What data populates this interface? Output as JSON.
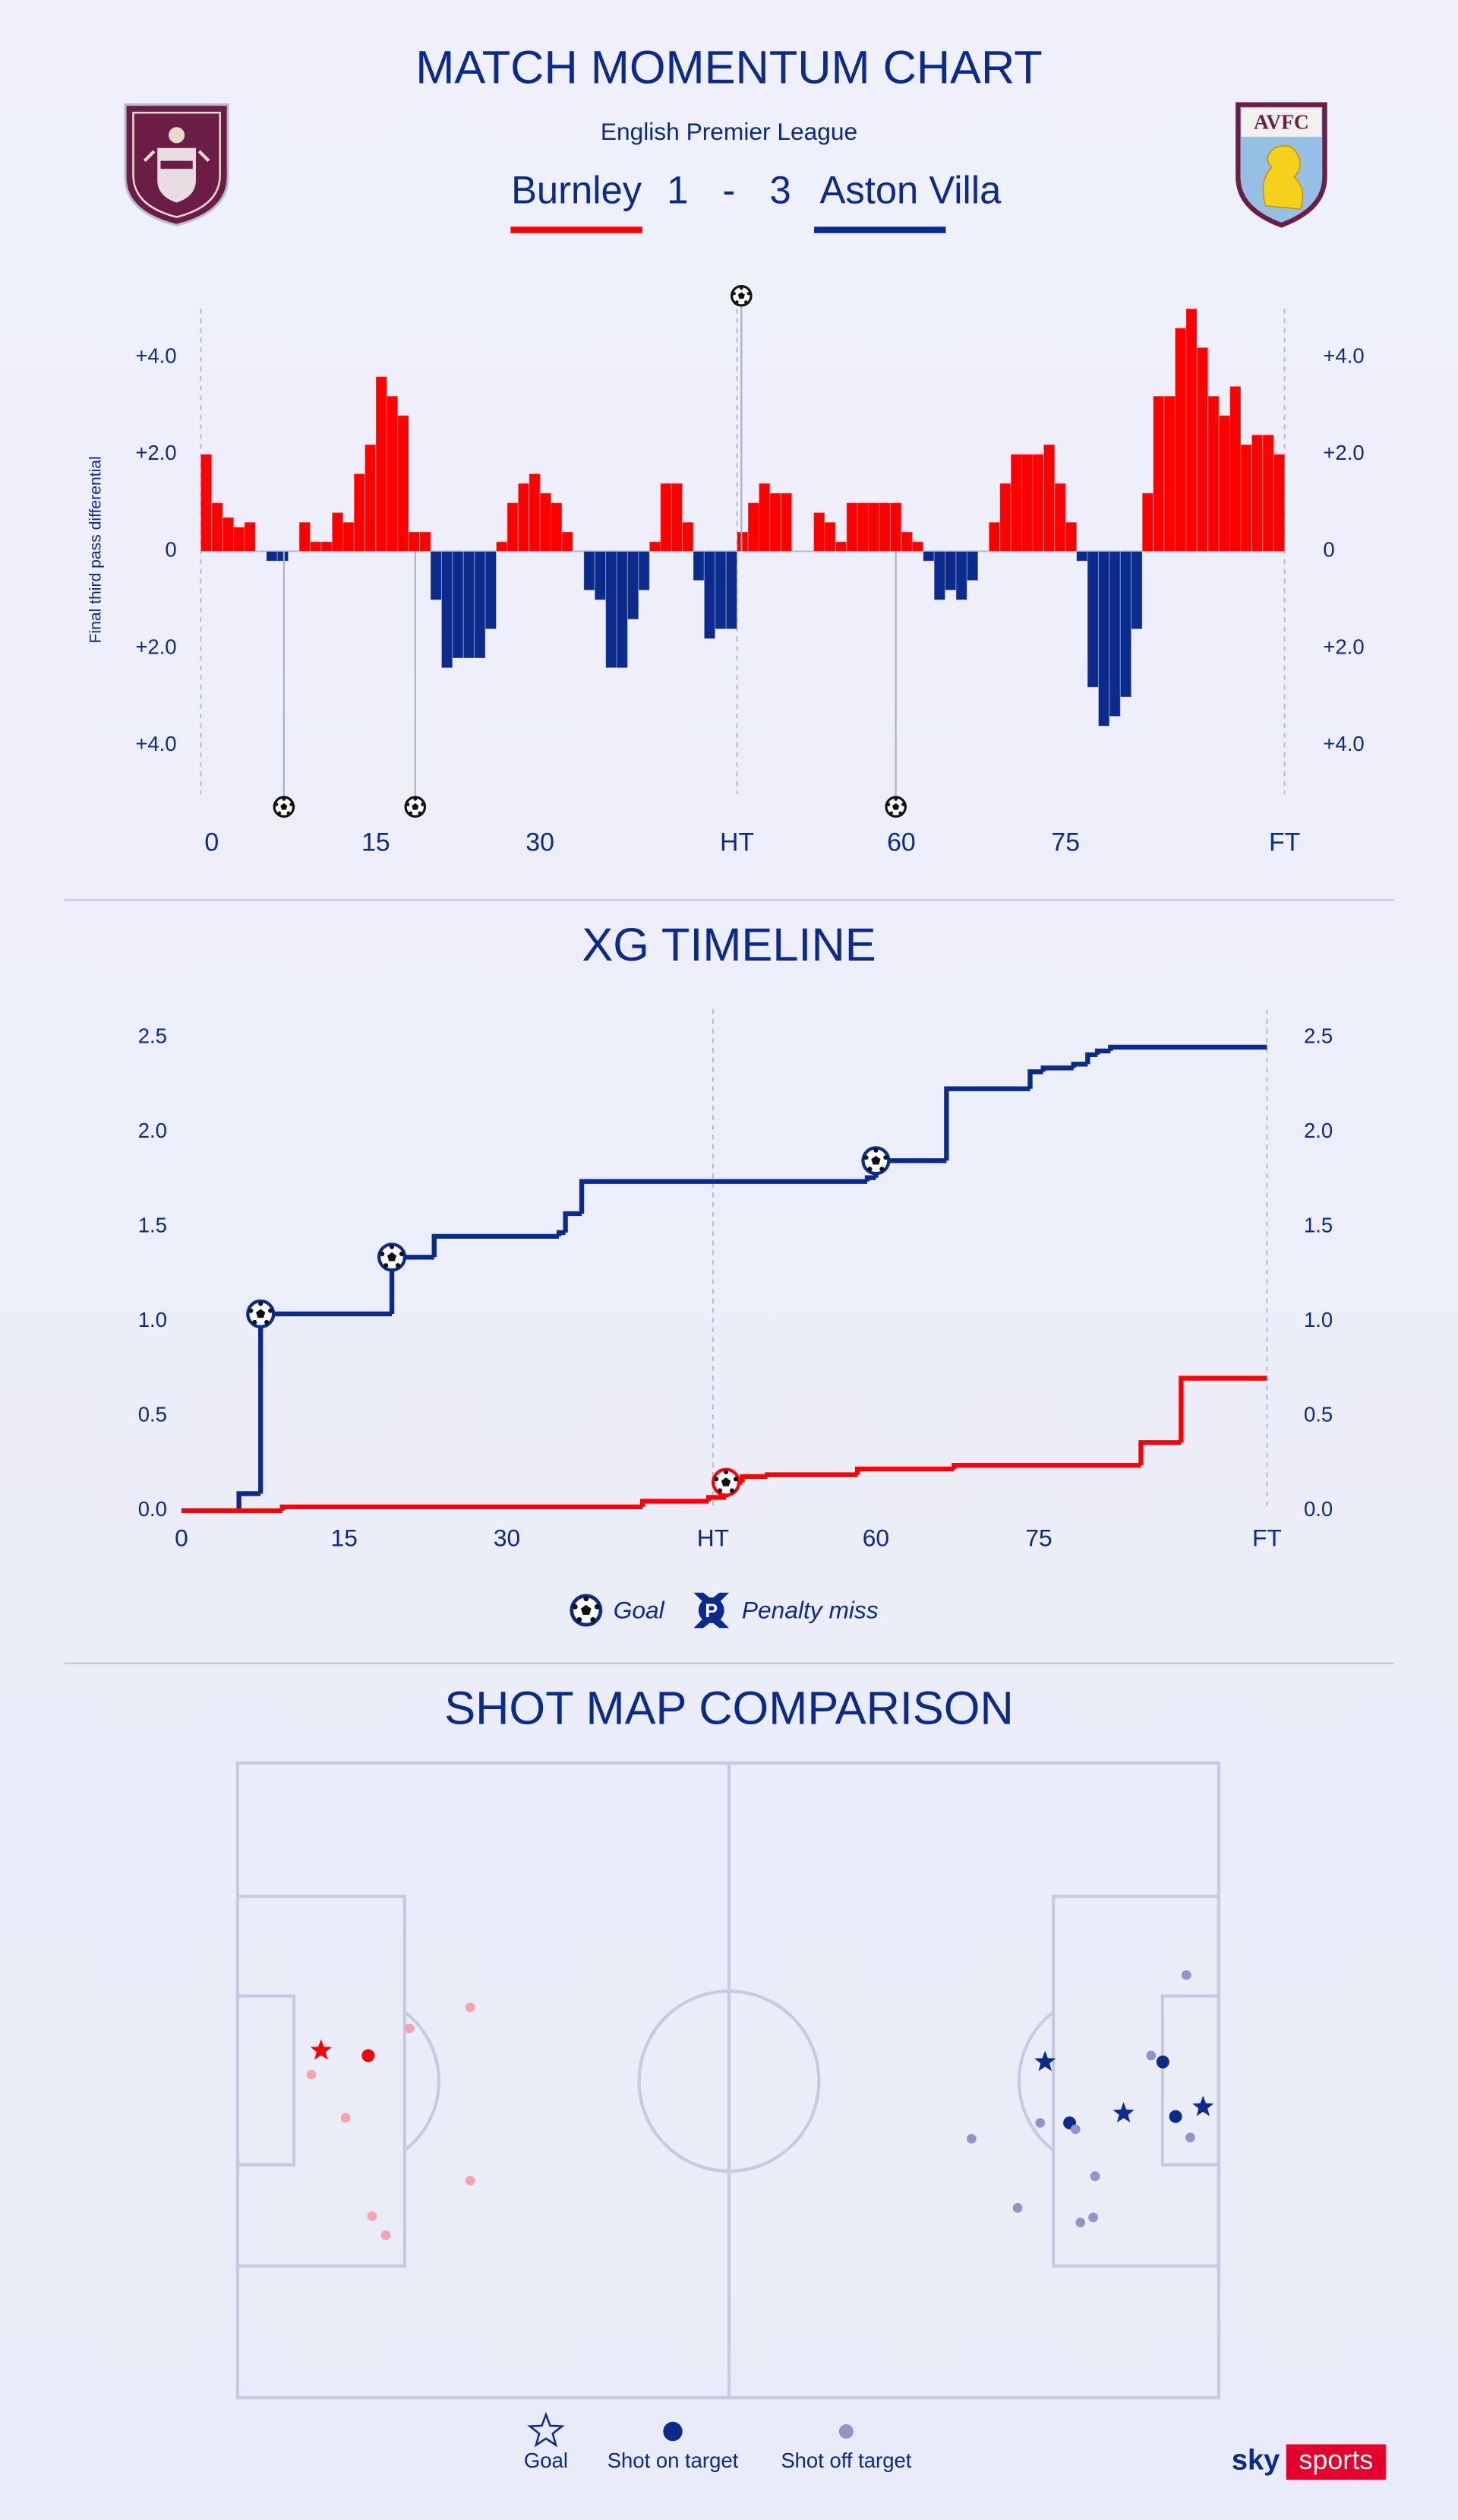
{
  "header": {
    "title": "MATCH MOMENTUM CHART",
    "competition": "English Premier League",
    "home_team": "Burnley",
    "home_score": 1,
    "separator": "-",
    "away_score": 3,
    "away_team": "Aston Villa",
    "home_color": "#ff0000",
    "away_color": "#0a2a8c",
    "away_crest_text": "AVFC"
  },
  "chart_data": [
    {
      "type": "bar",
      "title": "MATCH MOMENTUM CHART",
      "y_label": "Final third pass differential",
      "ylim": [
        -5,
        5
      ],
      "yticks": [
        {
          "value": 4,
          "label": "+4.0"
        },
        {
          "value": 2,
          "label": "+2.0"
        },
        0,
        {
          "value": -2,
          "label": "+2.0"
        },
        {
          "value": -4,
          "label": "+4.0"
        }
      ],
      "colors": {
        "positive": "#ff0000",
        "negative": "#0a2a8c"
      },
      "halves": [
        {
          "xlim": [
            -1,
            48
          ],
          "xticks": [
            0,
            15,
            30,
            {
              "value": 48,
              "label": "HT"
            }
          ],
          "x": [
            0,
            1,
            2,
            3,
            4,
            5,
            6,
            7,
            8,
            9,
            10,
            11,
            12,
            13,
            14,
            15,
            16,
            17,
            18,
            19,
            20,
            21,
            22,
            23,
            24,
            25,
            26,
            27,
            28,
            29,
            30,
            31,
            32,
            33,
            34,
            35,
            36,
            37,
            38,
            39,
            40,
            41,
            42,
            43,
            44,
            45,
            46,
            47,
            48
          ],
          "values": [
            2.0,
            1.0,
            0.7,
            0.5,
            0.6,
            0,
            -0.2,
            -0.2,
            0,
            0.6,
            0.2,
            0.2,
            0.8,
            0.6,
            1.6,
            2.2,
            3.6,
            3.2,
            2.8,
            0.4,
            0.4,
            -1.0,
            -2.4,
            -2.2,
            -2.2,
            -2.2,
            -1.6,
            0.2,
            1.0,
            1.4,
            1.6,
            1.2,
            1.0,
            0.4,
            0,
            -0.8,
            -1.0,
            -2.4,
            -2.4,
            -1.4,
            -0.8,
            0.2,
            1.4,
            1.4,
            0.6,
            -0.6,
            -1.8,
            -1.6,
            -1.6
          ]
        },
        {
          "xlim": [
            45,
            95
          ],
          "xticks": [
            60,
            75,
            {
              "value": 95,
              "label": "FT"
            }
          ],
          "x": [
            46,
            47,
            48,
            49,
            50,
            51,
            52,
            53,
            54,
            55,
            56,
            57,
            58,
            59,
            60,
            61,
            62,
            63,
            64,
            65,
            66,
            67,
            68,
            69,
            70,
            71,
            72,
            73,
            74,
            75,
            76,
            77,
            78,
            79,
            80,
            81,
            82,
            83,
            84,
            85,
            86,
            87,
            88,
            89,
            90,
            91,
            92,
            93,
            94,
            95
          ],
          "values": [
            0.4,
            1.0,
            1.4,
            1.2,
            1.2,
            0,
            0,
            0.8,
            0.6,
            0.2,
            1.0,
            1.0,
            1.0,
            1.0,
            1.0,
            0.4,
            0.2,
            -0.2,
            -1.0,
            -0.8,
            -1.0,
            -0.6,
            0,
            0.6,
            1.4,
            2.0,
            2.0,
            2.0,
            2.2,
            1.4,
            0.6,
            -0.2,
            -2.8,
            -3.6,
            -3.4,
            -3.0,
            -1.6,
            1.2,
            3.2,
            3.2,
            4.6,
            5.0,
            4.2,
            3.2,
            2.8,
            3.4,
            2.2,
            2.4,
            2.4,
            2.0
          ]
        }
      ],
      "goals": [
        {
          "half": 0,
          "x": 6.6,
          "direction": "down"
        },
        {
          "half": 0,
          "x": 18.6,
          "direction": "down"
        },
        {
          "half": 1,
          "x": 45.4,
          "direction": "up"
        },
        {
          "half": 1,
          "x": 59.5,
          "direction": "down"
        }
      ]
    },
    {
      "type": "line",
      "title": "XG TIMELINE",
      "step": true,
      "ylim": [
        0,
        2.65
      ],
      "yticks": [
        {
          "value": 0,
          "label": "0.0"
        },
        0.5,
        {
          "value": 1,
          "label": "1.0"
        },
        1.5,
        {
          "value": 2,
          "label": "2.0"
        },
        2.5
      ],
      "halves": [
        {
          "xlim": [
            0,
            49
          ],
          "xticks": [
            0,
            15,
            30,
            {
              "value": 49,
              "label": "HT"
            }
          ]
        },
        {
          "xlim": [
            45,
            96
          ],
          "xticks": [
            60,
            75,
            {
              "value": 96,
              "label": "FT"
            }
          ]
        }
      ],
      "series": [
        {
          "color": "#0a2a8c",
          "half": [
            0,
            0,
            0,
            0,
            0,
            0,
            0,
            0,
            1,
            1,
            1,
            1,
            1,
            1,
            1,
            1,
            1
          ],
          "x": [
            0,
            5.3,
            7.3,
            19.4,
            23.3,
            34.8,
            35.4,
            36.9,
            59.2,
            60.0,
            66.5,
            74.2,
            75.4,
            78.2,
            79.5,
            80.4,
            81.6
          ],
          "values": [
            0,
            0.09,
            1.04,
            1.34,
            1.45,
            1.47,
            1.57,
            1.74,
            1.76,
            1.85,
            2.23,
            2.32,
            2.34,
            2.36,
            2.41,
            2.43,
            2.45
          ],
          "goals": [
            2,
            3,
            9
          ]
        },
        {
          "color": "#ff0000",
          "half": [
            0,
            0,
            0,
            0,
            1,
            1,
            1,
            1,
            1,
            1,
            1
          ],
          "x": [
            0,
            9.3,
            42.5,
            48.6,
            46.2,
            47.7,
            50.0,
            58.3,
            67.2,
            84.4,
            88.1
          ],
          "values": [
            0,
            0.02,
            0.05,
            0.07,
            0.15,
            0.18,
            0.19,
            0.22,
            0.24,
            0.36,
            0.7
          ],
          "goals": [
            4
          ]
        }
      ],
      "legend": [
        {
          "label": "Goal",
          "icon": "ball"
        },
        {
          "label": "Penalty miss",
          "icon": "penalty",
          "icon_text": "P"
        }
      ]
    },
    {
      "type": "scatter",
      "title": "SHOT MAP COMPARISON",
      "xlim": [
        0,
        100
      ],
      "ylim": [
        0,
        100
      ],
      "series": [
        {
          "groups": [
            {
              "marker": "star",
              "color": "#ff0000",
              "x": [
                8.5
              ],
              "y": [
                45.3
              ]
            },
            {
              "marker": "dot",
              "color": "#ff0000",
              "x": [
                13.3
              ],
              "y": [
                46.1
              ]
            },
            {
              "marker": "light-dot",
              "color": "#f6a3ad",
              "x": [
                7.5,
                11.0,
                17.5,
                23.7,
                23.7,
                13.7,
                15.1
              ],
              "y": [
                49.1,
                55.9,
                41.8,
                38.5,
                65.8,
                71.4,
                74.4
              ]
            }
          ]
        },
        {
          "groups": [
            {
              "marker": "star",
              "color": "#0a2a8c",
              "x": [
                82.3,
                90.3,
                98.4
              ],
              "y": [
                47.1,
                55.2,
                54.2
              ]
            },
            {
              "marker": "dot",
              "color": "#0a2a8c",
              "x": [
                94.3,
                84.8,
                95.6
              ],
              "y": [
                47.1,
                56.7,
                55.7
              ]
            },
            {
              "marker": "light-dot",
              "color": "#8f95c9",
              "x": [
                96.7,
                93.1,
                81.8,
                85.4,
                74.8,
                97.1,
                87.4,
                79.5,
                85.9,
                87.2
              ],
              "y": [
                33.4,
                46.1,
                56.7,
                57.7,
                59.2,
                59.0,
                65.1,
                70.1,
                72.4,
                71.6
              ]
            }
          ]
        }
      ],
      "legend": [
        {
          "label": "Goal",
          "marker": "star-outline",
          "color": "#0a2a8c"
        },
        {
          "label": "Shot on target",
          "marker": "dot",
          "color": "#0a2a8c"
        },
        {
          "label": "Shot off target",
          "marker": "light-dot",
          "color": "#8f95c9"
        }
      ]
    }
  ],
  "branding": {
    "sky": "sky",
    "sports": "sports"
  }
}
